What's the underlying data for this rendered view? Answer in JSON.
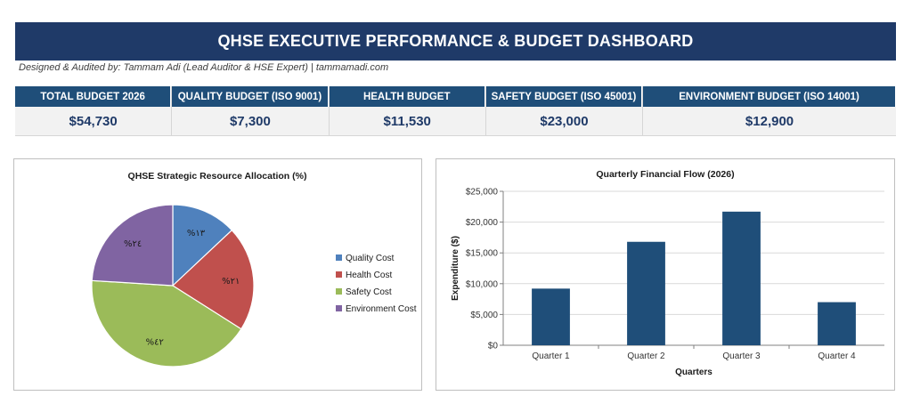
{
  "header": {
    "title": "QHSE EXECUTIVE PERFORMANCE & BUDGET DASHBOARD",
    "credit": "Designed & Audited by: Tammam Adi (Lead Auditor & HSE Expert) | tammamadi.com"
  },
  "kpis": [
    {
      "label": "TOTAL BUDGET 2026",
      "value": "$54,730"
    },
    {
      "label": "QUALITY BUDGET (ISO 9001)",
      "value": "$7,300"
    },
    {
      "label": "HEALTH BUDGET",
      "value": "$11,530"
    },
    {
      "label": "SAFETY BUDGET (ISO 45001)",
      "value": "$23,000"
    },
    {
      "label": "ENVIRONMENT BUDGET (ISO 14001)",
      "value": "$12,900"
    }
  ],
  "colors": {
    "title_bg": "#1f3a68",
    "kpi_head_bg": "#1f4e79",
    "bar": "#1f4e79",
    "quality": "#4f81bd",
    "health": "#c0504d",
    "safety": "#9bbb59",
    "environment": "#8064a2"
  },
  "chart_data": [
    {
      "type": "pie",
      "title": "QHSE Strategic Resource Allocation (%)",
      "categories": [
        "Quality Cost",
        "Health Cost",
        "Safety Cost",
        "Environment Cost"
      ],
      "values": [
        13,
        21,
        42,
        24
      ],
      "data_labels": [
        "%١٣",
        "%٢١",
        "%٤٢",
        "%٢٤"
      ],
      "legend_position": "right"
    },
    {
      "type": "bar",
      "title": "Quarterly Financial Flow (2026)",
      "categories": [
        "Quarter 1",
        "Quarter 2",
        "Quarter 3",
        "Quarter 4"
      ],
      "values": [
        9200,
        16800,
        21700,
        7000
      ],
      "xlabel": "Quarters",
      "ylabel": "Expenditure ($)",
      "ylim": [
        0,
        25000
      ],
      "yticks": [
        0,
        5000,
        10000,
        15000,
        20000,
        25000
      ],
      "ytick_labels": [
        "$0",
        "$5,000",
        "$10,000",
        "$15,000",
        "$20,000",
        "$25,000"
      ],
      "grid": true
    }
  ]
}
